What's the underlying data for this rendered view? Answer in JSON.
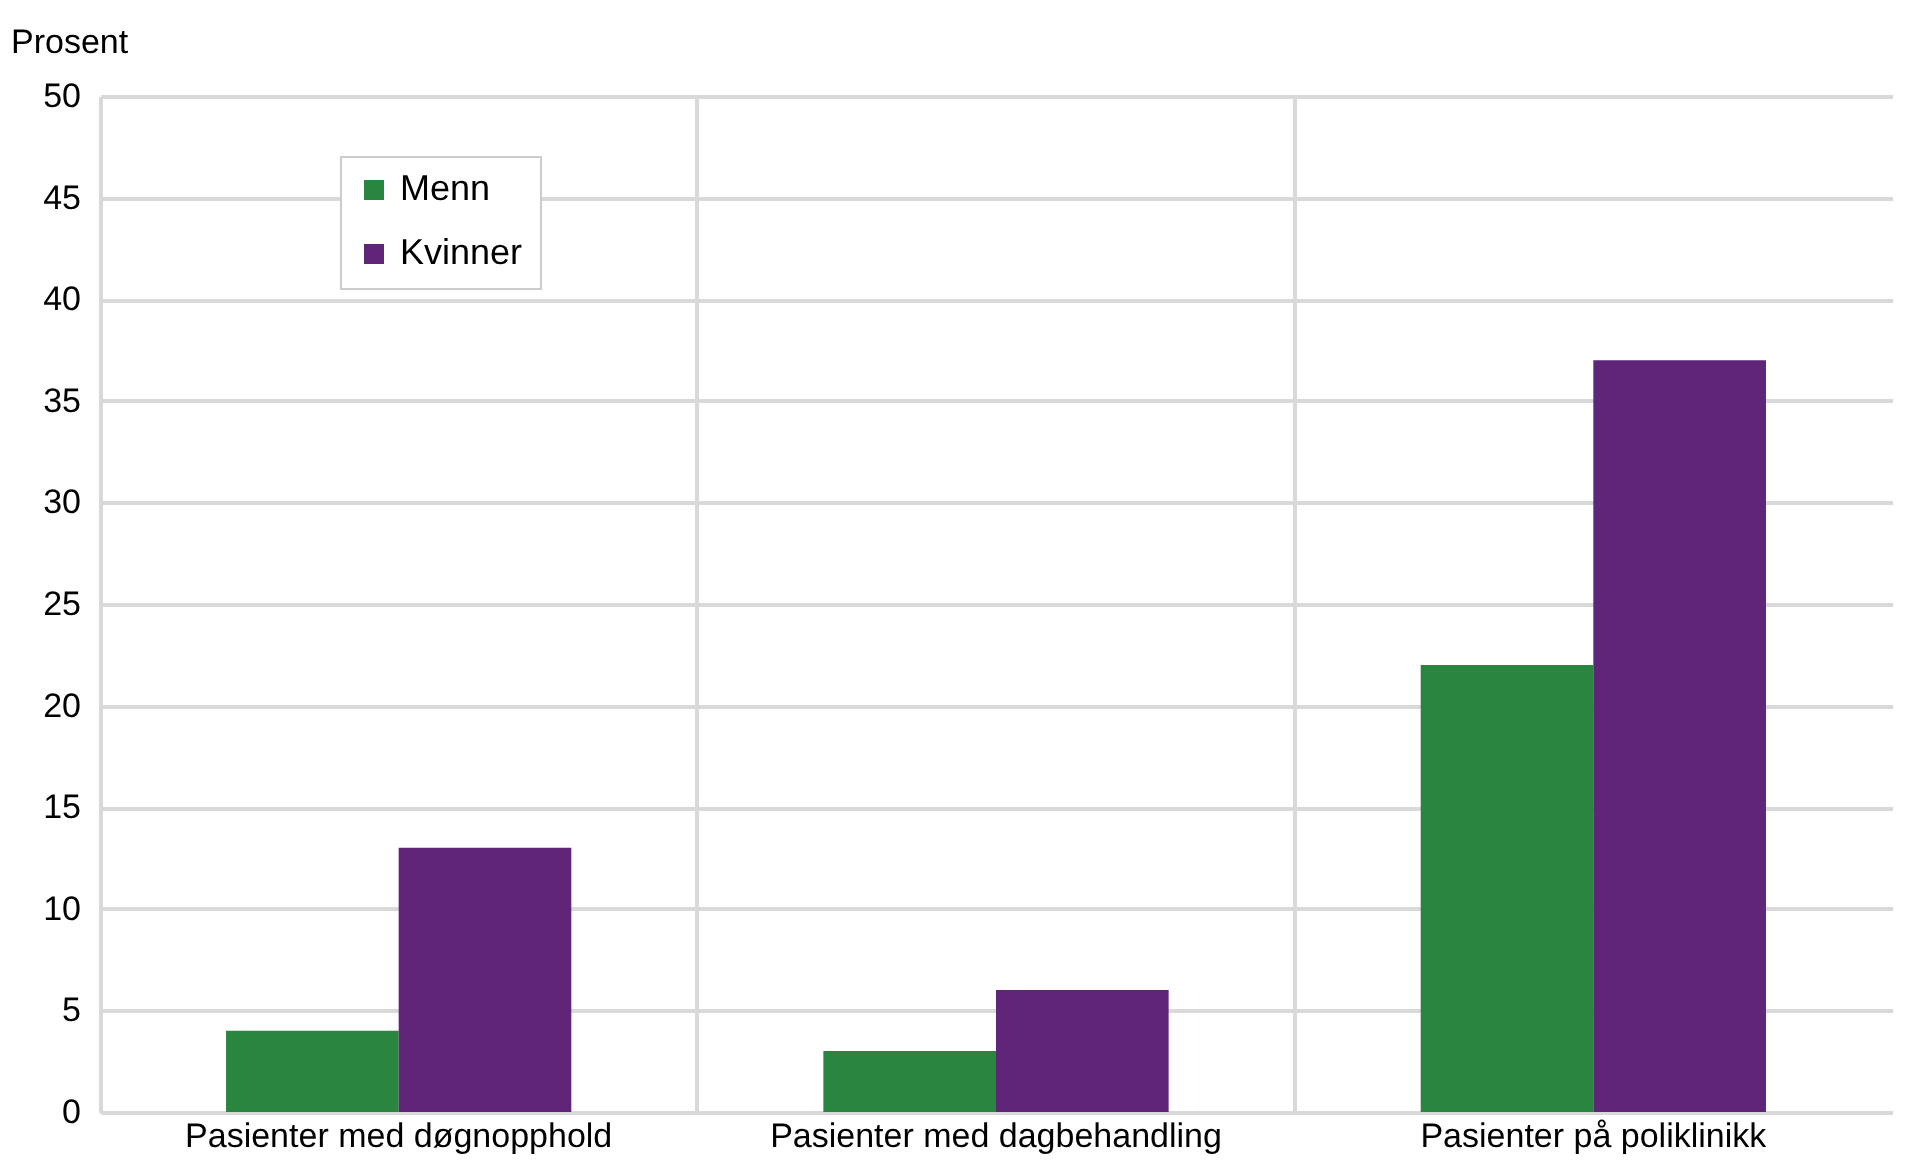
{
  "chart_data": {
    "type": "bar",
    "ylabel": "Prosent",
    "categories": [
      "Pasienter med døgnopphold",
      "Pasienter med dagbehandling",
      "Pasienter på poliklinikk"
    ],
    "series": [
      {
        "name": "Menn",
        "color": "#2a8540",
        "values": [
          4,
          3,
          22
        ]
      },
      {
        "name": "Kvinner",
        "color": "#5f2578",
        "values": [
          13,
          6,
          37
        ]
      }
    ],
    "ylim": [
      0,
      50
    ],
    "yticks": [
      0,
      5,
      10,
      15,
      20,
      25,
      30,
      35,
      40,
      45,
      50
    ],
    "grid": true,
    "legend": "top left"
  }
}
